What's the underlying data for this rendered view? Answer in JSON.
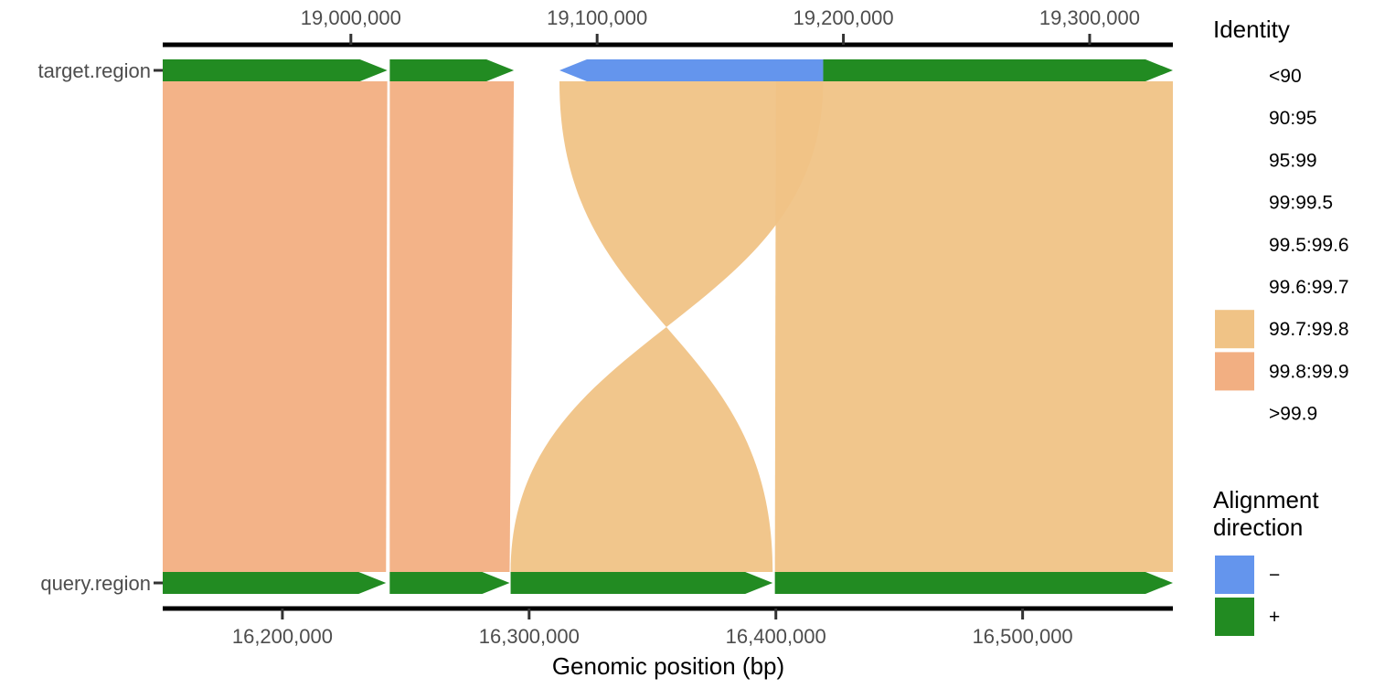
{
  "chart_data": {
    "type": "synteny",
    "xlabel": "Genomic position (bp)",
    "sequences": [
      {
        "name": "target.region",
        "xlim": [
          18923600,
          19333800
        ],
        "ticks": [
          19000000,
          19100000,
          19200000,
          19300000
        ],
        "tick_labels": [
          "19,000,000",
          "19,100,000",
          "19,200,000",
          "19,300,000"
        ]
      },
      {
        "name": "query.region",
        "xlim": [
          16151500,
          16560900
        ],
        "ticks": [
          16200000,
          16300000,
          16400000,
          16500000
        ],
        "tick_labels": [
          "16,200,000",
          "16,300,000",
          "16,400,000",
          "16,500,000"
        ]
      }
    ],
    "blocks": [
      {
        "track": "target.region",
        "start": 18923600,
        "end": 19014800,
        "strand": "+"
      },
      {
        "track": "target.region",
        "start": 19015800,
        "end": 19066200,
        "strand": "+"
      },
      {
        "track": "target.region",
        "start": 19084700,
        "end": 19191800,
        "strand": "-"
      },
      {
        "track": "target.region",
        "start": 19191800,
        "end": 19333800,
        "strand": "+"
      },
      {
        "track": "query.region",
        "start": 16151500,
        "end": 16242000,
        "strand": "+"
      },
      {
        "track": "query.region",
        "start": 16243500,
        "end": 16292100,
        "strand": "+"
      },
      {
        "track": "query.region",
        "start": 16292500,
        "end": 16398700,
        "strand": "+"
      },
      {
        "track": "query.region",
        "start": 16399600,
        "end": 16560900,
        "strand": "+"
      }
    ],
    "alignments": [
      {
        "target_start": 18923600,
        "target_end": 19014800,
        "query_start": 16151500,
        "query_end": 16242000,
        "identity": "99.8:99.9",
        "direction": "+"
      },
      {
        "target_start": 19015800,
        "target_end": 19066200,
        "query_start": 16243500,
        "query_end": 16292100,
        "identity": "99.8:99.9",
        "direction": "+"
      },
      {
        "target_start": 19084700,
        "target_end": 19191800,
        "query_start": 16292500,
        "query_end": 16398700,
        "identity": "99.7:99.8",
        "direction": "-"
      },
      {
        "target_start": 19172600,
        "target_end": 19333800,
        "query_start": 16399600,
        "query_end": 16560900,
        "identity": "99.7:99.8",
        "direction": "+"
      }
    ],
    "legend_identity": {
      "title": "Identity",
      "labels": [
        "<90",
        "90:95",
        "95:99",
        "99:99.5",
        "99.5:99.6",
        "99.6:99.7",
        "99.7:99.8",
        "99.8:99.9",
        ">99.9"
      ],
      "colors": [
        "",
        "",
        "",
        "",
        "",
        "",
        "#F0C386",
        "#F2AF82",
        ""
      ]
    },
    "legend_direction": {
      "title": [
        "Alignment",
        "direction"
      ],
      "labels": [
        "−",
        "+"
      ],
      "colors": [
        "#6495ED",
        "#228B22"
      ]
    },
    "legend_placement": "right",
    "grid": false
  }
}
